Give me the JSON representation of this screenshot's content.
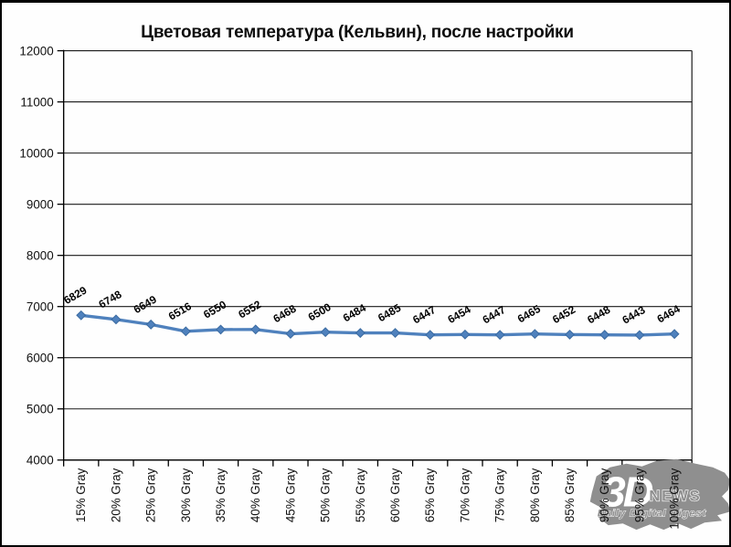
{
  "window": {
    "background": "#fefefe",
    "border_color": "#000000"
  },
  "chart_data": {
    "type": "line",
    "title": "Цветовая температура (Кельвин), после настройки",
    "categories": [
      "15% Gray",
      "20% Gray",
      "25% Gray",
      "30% Gray",
      "35% Gray",
      "40% Gray",
      "45% Gray",
      "50% Gray",
      "55% Gray",
      "60% Gray",
      "65% Gray",
      "70% Gray",
      "75% Gray",
      "80% Gray",
      "85% Gray",
      "90% Gray",
      "95% Gray",
      "100% Gray"
    ],
    "values": [
      6829,
      6748,
      6649,
      6516,
      6550,
      6552,
      6468,
      6500,
      6484,
      6485,
      6447,
      6454,
      6447,
      6465,
      6452,
      6448,
      6443,
      6464
    ],
    "xlabel": "",
    "ylabel": "",
    "ylim": [
      4000,
      12000
    ],
    "ytick_step": 1000,
    "grid": true,
    "legend": "none",
    "data_labels": true,
    "marker": "diamond",
    "series_color": "#4f81bd",
    "marker_edge_color": "#3a6aa0",
    "gridline_color": "#1a1a1a",
    "axis_color": "#000000",
    "label_color": "#111111"
  },
  "watermark": {
    "brand_3d": "3D",
    "brand_news": "NEWS",
    "tagline": "Daily Digital Digest",
    "color": "#8f8f8f",
    "text_color": "#ffffff"
  }
}
